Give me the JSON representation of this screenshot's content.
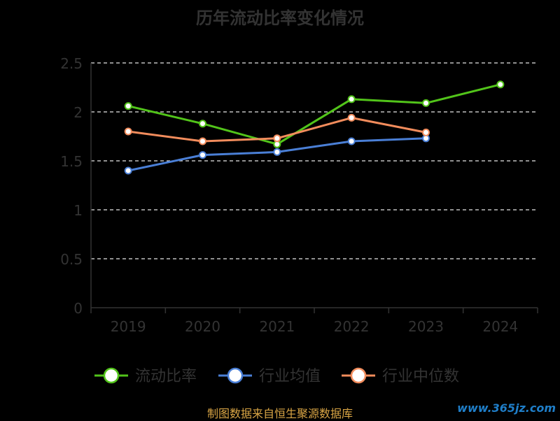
{
  "chart_data": {
    "type": "line",
    "title": "历年流动比率变化情况",
    "categories": [
      "2019",
      "2020",
      "2021",
      "2022",
      "2023",
      "2024"
    ],
    "ylim": [
      0,
      2.5
    ],
    "yticks": [
      "0",
      "0.5",
      "1",
      "1.5",
      "2",
      "2.5"
    ],
    "grid": true,
    "legend_position": "bottom",
    "series": [
      {
        "name": "流动比率",
        "color": "#52c41a",
        "values": [
          2.06,
          1.88,
          1.67,
          2.13,
          2.09,
          2.28
        ]
      },
      {
        "name": "行业均值",
        "color": "#4a7fd6",
        "values": [
          1.4,
          1.56,
          1.59,
          1.7,
          1.73,
          null
        ]
      },
      {
        "name": "行业中位数",
        "color": "#f28c5c",
        "values": [
          1.8,
          1.7,
          1.73,
          1.94,
          1.79,
          null
        ]
      }
    ]
  },
  "footer": "制图数据来自恒生聚源数据库",
  "watermark": "www.365jz.com"
}
